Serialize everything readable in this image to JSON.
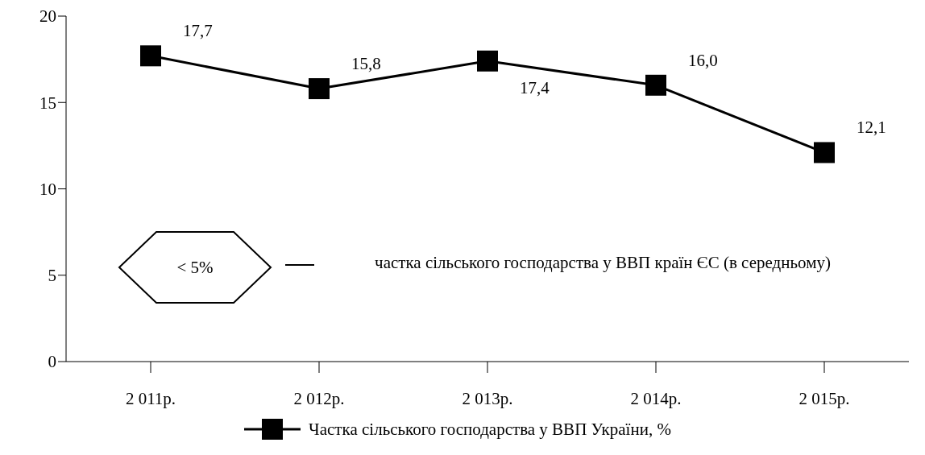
{
  "chart_data": {
    "type": "line",
    "categories": [
      "2 011р.",
      "2 012р.",
      "2 013р.",
      "2 014р.",
      "2 015р."
    ],
    "series": [
      {
        "name": "Частка сільського господарства у ВВП України, %",
        "color": "#000000",
        "values": [
          17.7,
          15.8,
          17.4,
          16.0,
          12.1
        ],
        "value_labels": [
          "17,7",
          "15,8",
          "17,4",
          "16,0",
          "12,1"
        ]
      }
    ],
    "ylim": [
      0,
      20
    ],
    "yticks": [
      0,
      5,
      10,
      15,
      20
    ],
    "grid": false,
    "legend": "bottom",
    "marker": "square",
    "line_style": "solid",
    "annotations": [
      "< 5%",
      "частка сільського господарства у ВВП країн ЄС (в середньому)"
    ]
  }
}
